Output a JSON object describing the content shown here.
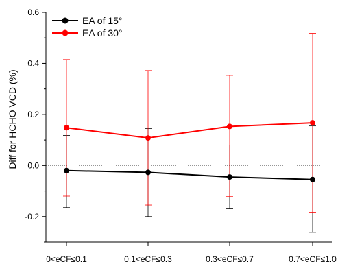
{
  "chart_data": {
    "type": "line",
    "title": "",
    "xlabel": "",
    "ylabel": "Diff for HCHO VCD (%)",
    "categories": [
      "0<eCF≤0.1",
      "0.1<eCF≤0.3",
      "0.3<eCF≤0.7",
      "0.7<eCF≤1.0"
    ],
    "ylim": [
      -0.3,
      0.6
    ],
    "yticks": [
      -0.2,
      0.0,
      0.2,
      0.4,
      0.6
    ],
    "ytick_labels": [
      "-0.2",
      "0.0",
      "0.2",
      "0.4",
      "0.6"
    ],
    "reference_line": 0,
    "grid": false,
    "legend_position": "top-left",
    "series": [
      {
        "name": "EA of 15°",
        "color": "#000000",
        "values": [
          -0.02,
          -0.027,
          -0.045,
          -0.055
        ],
        "error_low": [
          -0.165,
          -0.2,
          -0.17,
          -0.262
        ],
        "error_high": [
          0.118,
          0.145,
          0.08,
          0.155
        ]
      },
      {
        "name": "EA of 30°",
        "color": "#ff0000",
        "values": [
          0.148,
          0.108,
          0.153,
          0.167
        ],
        "error_low": [
          -0.12,
          -0.155,
          -0.122,
          -0.183
        ],
        "error_high": [
          0.415,
          0.372,
          0.353,
          0.518
        ]
      }
    ]
  }
}
